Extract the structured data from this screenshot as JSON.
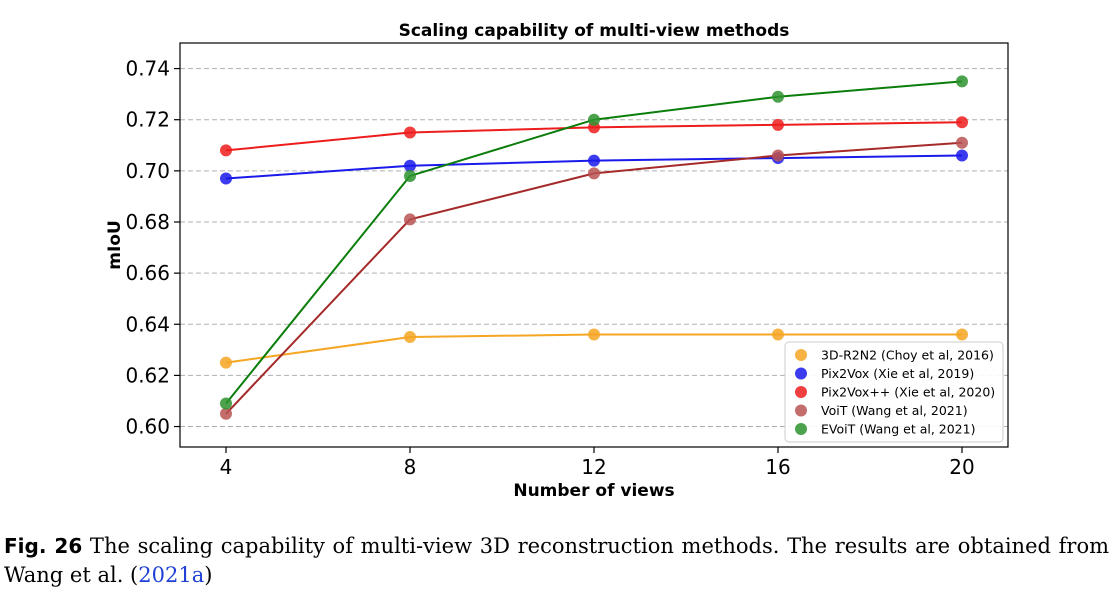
{
  "chart_data": {
    "type": "line",
    "title": "Scaling capability of multi-view methods",
    "xlabel": "Number of views",
    "ylabel": "mIoU",
    "x": [
      4,
      8,
      12,
      16,
      20
    ],
    "xlim": [
      3,
      21
    ],
    "ylim": [
      0.592,
      0.75
    ],
    "yticks": [
      0.6,
      0.62,
      0.64,
      0.66,
      0.68,
      0.7,
      0.72,
      0.74
    ],
    "ytick_labels": [
      "0.60",
      "0.62",
      "0.64",
      "0.66",
      "0.68",
      "0.70",
      "0.72",
      "0.74"
    ],
    "xtick_labels": [
      "4",
      "8",
      "12",
      "16",
      "20"
    ],
    "grid": "horizontal dashed",
    "legend_position": "lower-right",
    "series": [
      {
        "name": "3D-R2N2 (Choy et al, 2016)",
        "color": "#f5a623",
        "values": [
          0.625,
          0.635,
          0.636,
          0.636,
          0.636
        ]
      },
      {
        "name": "Pix2Vox (Xie et al, 2019)",
        "color": "#1a1aeb",
        "values": [
          0.697,
          0.702,
          0.704,
          0.705,
          0.706
        ]
      },
      {
        "name": "Pix2Vox++ (Xie et al, 2020)",
        "color": "#ee1c1c",
        "values": [
          0.708,
          0.715,
          0.717,
          0.718,
          0.719
        ]
      },
      {
        "name": "VoiT (Wang et al, 2021)",
        "color": "#a52a2a",
        "marker_color": "#b85454",
        "values": [
          0.605,
          0.681,
          0.699,
          0.706,
          0.711
        ]
      },
      {
        "name": "EVoiT (Wang et al, 2021)",
        "color": "#0a7d0a",
        "marker_color": "#2e932e",
        "values": [
          0.609,
          0.698,
          0.72,
          0.729,
          0.735
        ]
      }
    ]
  },
  "caption": {
    "label": "Fig. 26",
    "text": "  The scaling capability of multi-view 3D reconstruction methods. The results are obtained from Wang et al. (",
    "link": "2021a",
    "closing": ")"
  }
}
